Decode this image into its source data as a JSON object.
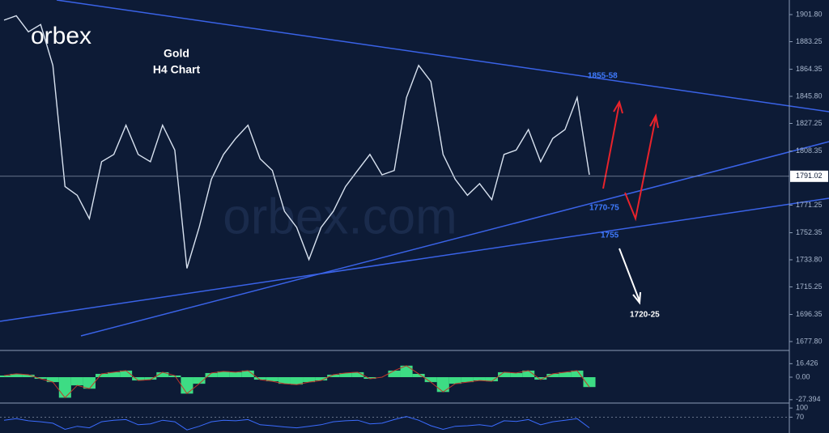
{
  "logo": "orbex",
  "watermark": "orbex.com",
  "chart_data": [
    {
      "type": "line",
      "title": "Gold",
      "subtitle": "H4 Chart",
      "color": "#d8e2f0",
      "values": [
        1898,
        1901,
        1890,
        1895,
        1867,
        1784,
        1778,
        1762,
        1801,
        1806,
        1826,
        1806,
        1801,
        1826,
        1809,
        1728,
        1756,
        1789,
        1806,
        1817,
        1826,
        1803,
        1795,
        1767,
        1756,
        1734,
        1756,
        1767,
        1784,
        1795,
        1806,
        1792,
        1795,
        1845,
        1867,
        1856,
        1806,
        1789,
        1778,
        1786,
        1775,
        1806,
        1809,
        1823,
        1801,
        1817,
        1823,
        1845,
        1792
      ],
      "ylim": [
        1671.7,
        1911.8
      ],
      "yticks": [
        {
          "value": 1901.8,
          "label": "1901.80"
        },
        1883.25,
        1864.35,
        {
          "value": 1845.8,
          "label": "1845.80"
        },
        1827.25,
        1808.35,
        1771.25,
        1752.35,
        {
          "value": 1733.8,
          "label": "1733.80"
        },
        1715.25,
        1696.35,
        {
          "value": 1677.8,
          "label": "1677.80"
        }
      ],
      "last_price": 1791.02,
      "annotations": [
        "1855-58",
        "1770-75",
        "1755",
        "1720-25"
      ]
    },
    {
      "type": "histogram-oscillator",
      "color": "#3ddc84",
      "values": [
        2,
        4,
        3,
        -2,
        -6,
        -25,
        -10,
        -14,
        4,
        6,
        8,
        -4,
        -3,
        6,
        2,
        -20,
        -8,
        5,
        7,
        6,
        8,
        -3,
        -5,
        -8,
        -9,
        -6,
        -4,
        3,
        5,
        6,
        -2,
        0,
        8,
        14,
        4,
        -6,
        -18,
        -8,
        -6,
        -4,
        -5,
        6,
        5,
        8,
        -3,
        4,
        6,
        8,
        -12
      ],
      "ylim": [
        -30.5,
        31.5
      ],
      "yticks": [
        16.426,
        {
          "value": 0,
          "label": "0.00"
        },
        -27.394
      ]
    },
    {
      "type": "rsi",
      "color": "#3b6cff",
      "values": [
        60,
        65,
        58,
        55,
        50,
        30,
        40,
        35,
        55,
        60,
        62,
        45,
        48,
        60,
        55,
        28,
        40,
        55,
        60,
        58,
        62,
        45,
        42,
        38,
        35,
        40,
        45,
        55,
        58,
        60,
        48,
        50,
        62,
        72,
        60,
        42,
        30,
        40,
        42,
        45,
        40,
        58,
        56,
        62,
        45,
        55,
        60,
        65,
        35
      ],
      "ylim": [
        18,
        113.6
      ],
      "yticks": [
        100,
        70
      ]
    }
  ]
}
